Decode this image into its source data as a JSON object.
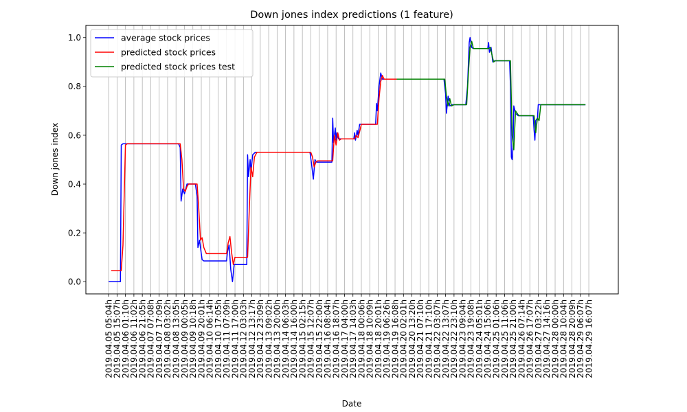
{
  "chart_data": {
    "type": "line",
    "title": "Down jones index predictions (1 feature)",
    "xlabel": "Date",
    "ylabel": "Down jones index",
    "ylim": [
      -0.05,
      1.05
    ],
    "yticks": [
      0.0,
      0.2,
      0.4,
      0.6,
      0.8,
      1.0
    ],
    "ytick_labels": [
      "0.0",
      "0.2",
      "0.4",
      "0.6",
      "0.8",
      "1.0"
    ],
    "grid": "vertical",
    "legend": "top-left",
    "xtick_labels": [
      "2019.04.05  05:04h",
      "2019.04.05  15:07h",
      "2019.04.06  01:10h",
      "2019.04.06  11:02h",
      "2019.04.06  21:05h",
      "2019.04.07  07:08h",
      "2019.04.07  17:09h",
      "2019.04.08  03:02h",
      "2019.04.08  13:05h",
      "2019.04.09  00:05h",
      "2019.04.09  10:18h",
      "2019.04.09  20:01h",
      "2019.04.10  06:14h",
      "2019.04.10  17:05h",
      "2019.04.11  07:09h",
      "2019.04.11  17:00h",
      "2019.04.12  03:03h",
      "2019.04.12  13:17h",
      "2019.04.12  23:09h",
      "2019.04.13  09:02h",
      "2019.04.13  20:00h",
      "2019.04.14  06:03h",
      "2019.04.14  16:00h",
      "2019.04.15  02:15h",
      "2019.04.15  12:07h",
      "2019.04.15  22:00h",
      "2019.04.16  08:04h",
      "2019.04.16  18:07h",
      "2019.04.17  04:00h",
      "2019.04.17  14:03h",
      "2019.04.18  00:06h",
      "2019.04.18  10:09h",
      "2019.04.18  20:01h",
      "2019.04.19  06:26h",
      "2019.04.19  16:08h",
      "2019.04.20  02:01h",
      "2019.04.20  13:20h",
      "2019.04.21  07:10h",
      "2019.04.21  17:10h",
      "2019.04.22  03:07h",
      "2019.04.22  13:07h",
      "2019.04.22  23:10h",
      "2019.04.23  09:04h",
      "2019.04.23  19:08h",
      "2019.04.24  05:01h",
      "2019.04.24  15:06h",
      "2019.04.25  01:06h",
      "2019.04.25  11:06h",
      "2019.04.25  21:00h",
      "2019.04.26  07:14h",
      "2019.04.26  17:07h",
      "2019.04.27  03:22h",
      "2019.04.27  14:16h",
      "2019.04.28  00:00h",
      "2019.04.28  10:04h",
      "2019.04.28  20:09h",
      "2019.04.29  06:07h",
      "2019.04.29  16:07h"
    ],
    "x_range": [
      -2.7,
      60.5
    ],
    "series": [
      {
        "name": "average stock prices",
        "color": "#0000ff",
        "points": [
          [
            0,
            0.0
          ],
          [
            1.4,
            0.0
          ],
          [
            1.5,
            0.56
          ],
          [
            1.7,
            0.565
          ],
          [
            8.3,
            0.565
          ],
          [
            8.5,
            0.55
          ],
          [
            8.6,
            0.33
          ],
          [
            8.8,
            0.38
          ],
          [
            9.0,
            0.36
          ],
          [
            9.3,
            0.4
          ],
          [
            10.3,
            0.4
          ],
          [
            10.5,
            0.35
          ],
          [
            10.6,
            0.14
          ],
          [
            10.8,
            0.17
          ],
          [
            10.9,
            0.14
          ],
          [
            11.1,
            0.09
          ],
          [
            11.3,
            0.085
          ],
          [
            14.0,
            0.085
          ],
          [
            14.1,
            0.12
          ],
          [
            14.3,
            0.15
          ],
          [
            14.5,
            0.05
          ],
          [
            14.7,
            0.0
          ],
          [
            14.9,
            0.07
          ],
          [
            16.4,
            0.07
          ],
          [
            16.5,
            0.52
          ],
          [
            16.6,
            0.43
          ],
          [
            16.8,
            0.5
          ],
          [
            16.9,
            0.45
          ],
          [
            17.1,
            0.52
          ],
          [
            17.4,
            0.53
          ],
          [
            23.9,
            0.53
          ],
          [
            24.1,
            0.48
          ],
          [
            24.3,
            0.42
          ],
          [
            24.5,
            0.5
          ],
          [
            24.7,
            0.49
          ],
          [
            26.5,
            0.49
          ],
          [
            26.6,
            0.67
          ],
          [
            26.7,
            0.57
          ],
          [
            26.9,
            0.63
          ],
          [
            27.0,
            0.58
          ],
          [
            27.1,
            0.61
          ],
          [
            27.3,
            0.585
          ],
          [
            29.1,
            0.585
          ],
          [
            29.2,
            0.61
          ],
          [
            29.3,
            0.58
          ],
          [
            29.5,
            0.62
          ],
          [
            29.6,
            0.6
          ],
          [
            29.8,
            0.645
          ],
          [
            31.7,
            0.645
          ],
          [
            31.8,
            0.73
          ],
          [
            31.9,
            0.7
          ],
          [
            32.1,
            0.8
          ],
          [
            32.3,
            0.855
          ],
          [
            32.5,
            0.83
          ],
          [
            34.2,
            0.83
          ],
          [
            37.0,
            0.83
          ],
          [
            39.8,
            0.83
          ],
          [
            40.0,
            0.77
          ],
          [
            40.1,
            0.69
          ],
          [
            40.3,
            0.76
          ],
          [
            40.5,
            0.72
          ],
          [
            40.8,
            0.725
          ],
          [
            42.4,
            0.725
          ],
          [
            42.6,
            0.8
          ],
          [
            42.8,
            0.98
          ],
          [
            42.9,
            1.0
          ],
          [
            43.1,
            0.96
          ],
          [
            43.3,
            0.955
          ],
          [
            45.0,
            0.955
          ],
          [
            45.1,
            0.98
          ],
          [
            45.2,
            0.94
          ],
          [
            45.4,
            0.96
          ],
          [
            45.6,
            0.9
          ],
          [
            45.8,
            0.905
          ],
          [
            47.6,
            0.905
          ],
          [
            47.7,
            0.8
          ],
          [
            47.8,
            0.51
          ],
          [
            47.9,
            0.5
          ],
          [
            48.0,
            0.55
          ],
          [
            48.1,
            0.72
          ],
          [
            48.3,
            0.69
          ],
          [
            48.6,
            0.68
          ],
          [
            50.4,
            0.68
          ],
          [
            50.5,
            0.62
          ],
          [
            50.6,
            0.58
          ],
          [
            50.7,
            0.66
          ],
          [
            50.9,
            0.67
          ],
          [
            51.0,
            0.725
          ],
          [
            56.6,
            0.725
          ]
        ]
      },
      {
        "name": "predicted stock prices",
        "color": "#ff0000",
        "points": [
          [
            0.3,
            0.045
          ],
          [
            1.5,
            0.045
          ],
          [
            1.7,
            0.15
          ],
          [
            2.0,
            0.56
          ],
          [
            2.2,
            0.565
          ],
          [
            8.5,
            0.565
          ],
          [
            8.7,
            0.5
          ],
          [
            8.9,
            0.38
          ],
          [
            9.1,
            0.37
          ],
          [
            9.3,
            0.39
          ],
          [
            9.5,
            0.4
          ],
          [
            10.5,
            0.4
          ],
          [
            10.7,
            0.3
          ],
          [
            10.9,
            0.17
          ],
          [
            11.1,
            0.18
          ],
          [
            11.3,
            0.14
          ],
          [
            11.6,
            0.115
          ],
          [
            14.0,
            0.115
          ],
          [
            14.2,
            0.16
          ],
          [
            14.4,
            0.185
          ],
          [
            14.6,
            0.12
          ],
          [
            14.8,
            0.07
          ],
          [
            15.0,
            0.1
          ],
          [
            16.5,
            0.1
          ],
          [
            16.7,
            0.3
          ],
          [
            16.9,
            0.47
          ],
          [
            17.1,
            0.43
          ],
          [
            17.3,
            0.51
          ],
          [
            17.6,
            0.53
          ],
          [
            24.0,
            0.53
          ],
          [
            24.2,
            0.51
          ],
          [
            24.4,
            0.47
          ],
          [
            24.6,
            0.49
          ],
          [
            24.8,
            0.495
          ],
          [
            26.6,
            0.495
          ],
          [
            26.8,
            0.6
          ],
          [
            27.0,
            0.56
          ],
          [
            27.2,
            0.61
          ],
          [
            27.4,
            0.58
          ],
          [
            27.6,
            0.585
          ],
          [
            29.2,
            0.585
          ],
          [
            29.4,
            0.6
          ],
          [
            29.6,
            0.59
          ],
          [
            29.8,
            0.615
          ],
          [
            30.0,
            0.645
          ],
          [
            31.9,
            0.645
          ],
          [
            32.1,
            0.75
          ],
          [
            32.3,
            0.82
          ],
          [
            32.5,
            0.845
          ],
          [
            32.7,
            0.83
          ],
          [
            34.2,
            0.83
          ]
        ]
      },
      {
        "name": "predicted stock prices test",
        "color": "#008000",
        "points": [
          [
            34.2,
            0.83
          ],
          [
            39.9,
            0.83
          ],
          [
            40.1,
            0.76
          ],
          [
            40.3,
            0.72
          ],
          [
            40.5,
            0.75
          ],
          [
            40.7,
            0.72
          ],
          [
            41.0,
            0.725
          ],
          [
            42.5,
            0.725
          ],
          [
            42.7,
            0.85
          ],
          [
            42.9,
            0.96
          ],
          [
            43.1,
            0.985
          ],
          [
            43.3,
            0.955
          ],
          [
            45.1,
            0.955
          ],
          [
            45.3,
            0.96
          ],
          [
            45.5,
            0.93
          ],
          [
            45.7,
            0.9
          ],
          [
            45.9,
            0.905
          ],
          [
            47.7,
            0.905
          ],
          [
            47.9,
            0.6
          ],
          [
            48.1,
            0.54
          ],
          [
            48.3,
            0.7
          ],
          [
            48.5,
            0.69
          ],
          [
            48.7,
            0.68
          ],
          [
            50.5,
            0.68
          ],
          [
            50.7,
            0.61
          ],
          [
            50.9,
            0.67
          ],
          [
            51.1,
            0.66
          ],
          [
            51.3,
            0.725
          ],
          [
            56.6,
            0.725
          ]
        ]
      }
    ]
  }
}
